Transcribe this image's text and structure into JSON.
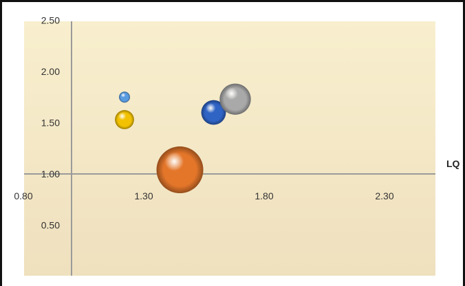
{
  "chart_data": {
    "type": "scatter",
    "subtype": "bubble",
    "title": "",
    "xlabel": "LQ",
    "ylabel": "",
    "xlim": [
      0.8,
      2.6
    ],
    "ylim": [
      0.0,
      2.5
    ],
    "x_ticks": [
      "0.80",
      "1.30",
      "1.80",
      "2.30"
    ],
    "y_ticks": [
      "2.50",
      "2.00",
      "1.50",
      "1.00",
      "0.50"
    ],
    "axis_crossing": {
      "x_axis_at_y": 1.0,
      "y_axis_at_x": 1.0
    },
    "grid": false,
    "legend": "none",
    "colors": {
      "plot_background_top": "#f8efce",
      "plot_background_bottom": "#efe0be",
      "axis_line": "#9a9a9a"
    },
    "series": [
      {
        "x": 1.22,
        "y": 1.75,
        "size": 1,
        "color": "#5a9be0"
      },
      {
        "x": 1.22,
        "y": 1.53,
        "size": 3,
        "color": "#f2c200"
      },
      {
        "x": 1.45,
        "y": 1.04,
        "size": 18,
        "color": "#e4762a"
      },
      {
        "x": 1.59,
        "y": 1.6,
        "size": 5,
        "color": "#2f63c4"
      },
      {
        "x": 1.68,
        "y": 1.73,
        "size": 8,
        "color": "#a9a9a9"
      }
    ]
  }
}
